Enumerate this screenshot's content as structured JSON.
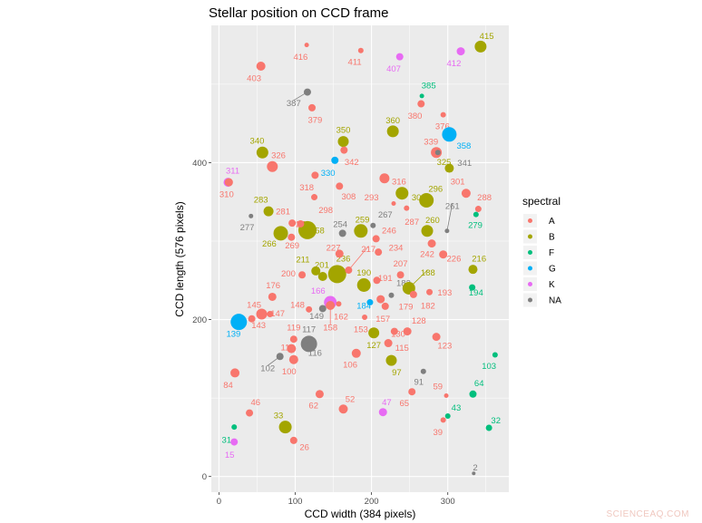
{
  "chart_data": {
    "type": "scatter",
    "title": "Stellar position on CCD frame",
    "xlabel": "CCD width (384 pixels)",
    "ylabel": "CCD length (576 pixels)",
    "xlim": [
      -10,
      380
    ],
    "ylim": [
      -20,
      575
    ],
    "x_ticks": [
      0,
      100,
      200,
      300
    ],
    "y_ticks": [
      0,
      200,
      400
    ],
    "grid": true,
    "legend": {
      "title": "spectral",
      "position": "right",
      "entries": [
        {
          "label": "A",
          "color": "#F8766D"
        },
        {
          "label": "B",
          "color": "#A3A500"
        },
        {
          "label": "F",
          "color": "#00BF7D"
        },
        {
          "label": "G",
          "color": "#00B0F6"
        },
        {
          "label": "K",
          "color": "#E76BF3"
        },
        {
          "label": "NA",
          "color": "#7F7F7F"
        }
      ]
    },
    "points": [
      {
        "id": "2",
        "x": 334,
        "y": 4,
        "s": "NA",
        "r": 2,
        "lx": 336,
        "ly": 12
      },
      {
        "id": "15",
        "x": 20,
        "y": 44,
        "s": "K",
        "r": 4,
        "lx": 14,
        "ly": 28
      },
      {
        "id": "26",
        "x": 98,
        "y": 46,
        "s": "A",
        "r": 4,
        "lx": 112,
        "ly": 38
      },
      {
        "id": "31",
        "x": 20,
        "y": 63,
        "s": "F",
        "r": 3,
        "lx": 10,
        "ly": 47
      },
      {
        "id": "32",
        "x": 354,
        "y": 62,
        "s": "F",
        "r": 3.5,
        "lx": 363,
        "ly": 72
      },
      {
        "id": "33",
        "x": 87,
        "y": 63,
        "s": "B",
        "r": 7,
        "lx": 78,
        "ly": 78
      },
      {
        "id": "39",
        "x": 294,
        "y": 72,
        "s": "A",
        "r": 3,
        "lx": 287,
        "ly": 57
      },
      {
        "id": "43",
        "x": 300,
        "y": 77,
        "s": "F",
        "r": 3,
        "lx": 311,
        "ly": 88
      },
      {
        "id": "46",
        "x": 40,
        "y": 81,
        "s": "A",
        "r": 4,
        "lx": 48,
        "ly": 95
      },
      {
        "id": "47",
        "x": 215,
        "y": 82,
        "s": "K",
        "r": 4.5,
        "lx": 220,
        "ly": 95
      },
      {
        "id": "52",
        "x": 163,
        "y": 86,
        "s": "A",
        "r": 5,
        "lx": 172,
        "ly": 99
      },
      {
        "id": "59",
        "x": 298,
        "y": 103,
        "s": "A",
        "r": 2.5,
        "lx": 287,
        "ly": 115
      },
      {
        "id": "62",
        "x": 132,
        "y": 105,
        "s": "A",
        "r": 4.5,
        "lx": 124,
        "ly": 91
      },
      {
        "id": "64",
        "x": 333,
        "y": 105,
        "s": "F",
        "r": 4,
        "lx": 341,
        "ly": 119
      },
      {
        "id": "65",
        "x": 253,
        "y": 108,
        "s": "A",
        "r": 4,
        "lx": 243,
        "ly": 94
      },
      {
        "id": "84",
        "x": 21,
        "y": 132,
        "s": "A",
        "r": 5,
        "lx": 12,
        "ly": 117
      },
      {
        "id": "91",
        "x": 268,
        "y": 134,
        "s": "NA",
        "r": 3,
        "lx": 262,
        "ly": 121
      },
      {
        "id": "97",
        "x": 226,
        "y": 148,
        "s": "B",
        "r": 6,
        "lx": 233,
        "ly": 133
      },
      {
        "id": "100",
        "x": 98,
        "y": 149,
        "s": "A",
        "r": 5,
        "lx": 92,
        "ly": 134
      },
      {
        "id": "102",
        "x": 80,
        "y": 153,
        "s": "NA",
        "r": 4,
        "lx": 64,
        "ly": 138,
        "line": true
      },
      {
        "id": "103",
        "x": 362,
        "y": 155,
        "s": "F",
        "r": 3,
        "lx": 354,
        "ly": 141
      },
      {
        "id": "106",
        "x": 180,
        "y": 157,
        "s": "A",
        "r": 5,
        "lx": 172,
        "ly": 143
      },
      {
        "id": "110",
        "x": 95,
        "y": 163,
        "s": "A",
        "r": 5,
        "lx": 90,
        "ly": 165
      },
      {
        "id": "115",
        "x": 222,
        "y": 170,
        "s": "A",
        "r": 4.5,
        "lx": 240,
        "ly": 164
      },
      {
        "id": "116",
        "x": 118,
        "y": 169,
        "s": "NA",
        "r": 9,
        "lx": 126,
        "ly": 158
      },
      {
        "id": "117",
        "x": 118,
        "y": 169,
        "s": "NA",
        "r": 2,
        "lx": 118,
        "ly": 188
      },
      {
        "id": "119",
        "x": 98,
        "y": 175,
        "s": "A",
        "r": 4,
        "lx": 98,
        "ly": 190
      },
      {
        "id": "123",
        "x": 285,
        "y": 178,
        "s": "A",
        "r": 4.5,
        "lx": 296,
        "ly": 167
      },
      {
        "id": "127",
        "x": 203,
        "y": 183,
        "s": "B",
        "r": 6,
        "lx": 203,
        "ly": 168
      },
      {
        "id": "128",
        "x": 247,
        "y": 185,
        "s": "A",
        "r": 4.5,
        "lx": 262,
        "ly": 199
      },
      {
        "id": "130",
        "x": 230,
        "y": 185,
        "s": "A",
        "r": 4,
        "lx": 235,
        "ly": 182
      },
      {
        "id": "139",
        "x": 26,
        "y": 197,
        "s": "G",
        "r": 9,
        "lx": 19,
        "ly": 182
      },
      {
        "id": "143",
        "x": 43,
        "y": 201,
        "s": "A",
        "r": 4,
        "lx": 52,
        "ly": 193
      },
      {
        "id": "145",
        "x": 56,
        "y": 207,
        "s": "A",
        "r": 6,
        "lx": 46,
        "ly": 219
      },
      {
        "id": "147",
        "x": 67,
        "y": 207,
        "s": "A",
        "r": 3.5,
        "lx": 77,
        "ly": 208
      },
      {
        "id": "148",
        "x": 118,
        "y": 213,
        "s": "A",
        "r": 3.5,
        "lx": 103,
        "ly": 219
      },
      {
        "id": "149",
        "x": 136,
        "y": 214,
        "s": "NA",
        "r": 4,
        "lx": 128,
        "ly": 205
      },
      {
        "id": "153",
        "x": 191,
        "y": 203,
        "s": "A",
        "r": 3,
        "lx": 186,
        "ly": 188
      },
      {
        "id": "157",
        "x": 218,
        "y": 217,
        "s": "A",
        "r": 4,
        "lx": 215,
        "ly": 201
      },
      {
        "id": "158",
        "x": 146,
        "y": 218,
        "s": "A",
        "r": 5,
        "lx": 146,
        "ly": 190,
        "line": true
      },
      {
        "id": "162",
        "x": 157,
        "y": 220,
        "s": "A",
        "r": 3,
        "lx": 160,
        "ly": 204
      },
      {
        "id": "166",
        "x": 146,
        "y": 222,
        "s": "K",
        "r": 7,
        "lx": 130,
        "ly": 237
      },
      {
        "id": "176",
        "x": 70,
        "y": 229,
        "s": "A",
        "r": 4.5,
        "lx": 71,
        "ly": 244
      },
      {
        "id": "179",
        "x": 212,
        "y": 226,
        "s": "A",
        "r": 4.5,
        "lx": 245,
        "ly": 217
      },
      {
        "id": "182",
        "x": 255,
        "y": 232,
        "s": "A",
        "r": 4,
        "lx": 274,
        "ly": 218
      },
      {
        "id": "183",
        "x": 226,
        "y": 231,
        "s": "NA",
        "r": 3,
        "lx": 242,
        "ly": 247
      },
      {
        "id": "184",
        "x": 198,
        "y": 222,
        "s": "G",
        "r": 3.5,
        "lx": 190,
        "ly": 218
      },
      {
        "id": "188",
        "x": 249,
        "y": 240,
        "s": "B",
        "r": 7,
        "lx": 274,
        "ly": 260,
        "line": true
      },
      {
        "id": "190",
        "x": 190,
        "y": 244,
        "s": "B",
        "r": 7.5,
        "lx": 190,
        "ly": 260
      },
      {
        "id": "191",
        "x": 207,
        "y": 250,
        "s": "A",
        "r": 4,
        "lx": 218,
        "ly": 253
      },
      {
        "id": "193",
        "x": 276,
        "y": 235,
        "s": "A",
        "r": 3.5,
        "lx": 296,
        "ly": 235
      },
      {
        "id": "194",
        "x": 332,
        "y": 241,
        "s": "F",
        "r": 3.5,
        "lx": 337,
        "ly": 235
      },
      {
        "id": "200",
        "x": 109,
        "y": 257,
        "s": "A",
        "r": 4,
        "lx": 91,
        "ly": 259
      },
      {
        "id": "201",
        "x": 136,
        "y": 255,
        "s": "B",
        "r": 5,
        "lx": 135,
        "ly": 270
      },
      {
        "id": "207",
        "x": 238,
        "y": 257,
        "s": "A",
        "r": 4,
        "lx": 238,
        "ly": 272
      },
      {
        "id": "211",
        "x": 127,
        "y": 262,
        "s": "B",
        "r": 5,
        "lx": 110,
        "ly": 277
      },
      {
        "id": "216",
        "x": 333,
        "y": 264,
        "s": "B",
        "r": 5,
        "lx": 341,
        "ly": 278
      },
      {
        "id": "217",
        "x": 170,
        "y": 263,
        "s": "A",
        "r": 4,
        "lx": 196,
        "ly": 290,
        "line": true
      },
      {
        "id": "226",
        "x": 294,
        "y": 283,
        "s": "A",
        "r": 4.5,
        "lx": 308,
        "ly": 278
      },
      {
        "id": "227",
        "x": 158,
        "y": 284,
        "s": "A",
        "r": 4.5,
        "lx": 150,
        "ly": 292
      },
      {
        "id": "234",
        "x": 209,
        "y": 286,
        "s": "A",
        "r": 4,
        "lx": 232,
        "ly": 292
      },
      {
        "id": "236",
        "x": 155,
        "y": 258,
        "s": "B",
        "r": 10,
        "lx": 163,
        "ly": 278
      },
      {
        "id": "242",
        "x": 279,
        "y": 297,
        "s": "A",
        "r": 4.5,
        "lx": 273,
        "ly": 284
      },
      {
        "id": "246",
        "x": 206,
        "y": 303,
        "s": "A",
        "r": 4,
        "lx": 223,
        "ly": 314
      },
      {
        "id": "254",
        "x": 162,
        "y": 310,
        "s": "NA",
        "r": 4,
        "lx": 159,
        "ly": 322
      },
      {
        "id": "258",
        "x": 116,
        "y": 314,
        "s": "B",
        "r": 10,
        "lx": 129,
        "ly": 314
      },
      {
        "id": "259",
        "x": 186,
        "y": 313,
        "s": "B",
        "r": 7.5,
        "lx": 188,
        "ly": 328
      },
      {
        "id": "260",
        "x": 273,
        "y": 313,
        "s": "B",
        "r": 6.5,
        "lx": 280,
        "ly": 327
      },
      {
        "id": "261",
        "x": 299,
        "y": 313,
        "s": "NA",
        "r": 2.5,
        "lx": 306,
        "ly": 345,
        "line": true
      },
      {
        "id": "266",
        "x": 81,
        "y": 310,
        "s": "B",
        "r": 8,
        "lx": 66,
        "ly": 297
      },
      {
        "id": "267",
        "x": 202,
        "y": 320,
        "s": "NA",
        "r": 3,
        "lx": 218,
        "ly": 334
      },
      {
        "id": "269",
        "x": 95,
        "y": 305,
        "s": "A",
        "r": 4,
        "lx": 96,
        "ly": 295
      },
      {
        "id": "271",
        "x": 107,
        "y": 322,
        "s": "A",
        "r": 4,
        "lx": 110,
        "ly": 322
      },
      {
        "id": "277",
        "x": 42,
        "y": 332,
        "s": "NA",
        "r": 2.5,
        "lx": 37,
        "ly": 318
      },
      {
        "id": "279",
        "x": 337,
        "y": 334,
        "s": "F",
        "r": 3,
        "lx": 336,
        "ly": 321
      },
      {
        "id": "281",
        "x": 96,
        "y": 323,
        "s": "A",
        "r": 4,
        "lx": 84,
        "ly": 338
      },
      {
        "id": "283",
        "x": 65,
        "y": 338,
        "s": "B",
        "r": 5.5,
        "lx": 55,
        "ly": 353
      },
      {
        "id": "287",
        "x": 246,
        "y": 342,
        "s": "A",
        "r": 3,
        "lx": 253,
        "ly": 325
      },
      {
        "id": "288",
        "x": 340,
        "y": 341,
        "s": "A",
        "r": 3.5,
        "lx": 348,
        "ly": 356
      },
      {
        "id": "293",
        "x": 229,
        "y": 348,
        "s": "A",
        "r": 2.5,
        "lx": 200,
        "ly": 356
      },
      {
        "id": "296",
        "x": 272,
        "y": 352,
        "s": "B",
        "r": 8,
        "lx": 284,
        "ly": 367
      },
      {
        "id": "298",
        "x": 125,
        "y": 356,
        "s": "A",
        "r": 3.5,
        "lx": 140,
        "ly": 340
      },
      {
        "id": "301",
        "x": 324,
        "y": 361,
        "s": "A",
        "r": 5,
        "lx": 313,
        "ly": 376
      },
      {
        "id": "302",
        "x": 240,
        "y": 361,
        "s": "B",
        "r": 7,
        "lx": 262,
        "ly": 356
      },
      {
        "id": "308",
        "x": 158,
        "y": 370,
        "s": "A",
        "r": 4,
        "lx": 170,
        "ly": 357
      },
      {
        "id": "310",
        "x": 13,
        "y": 375,
        "s": "A",
        "r": 4.5,
        "lx": 10,
        "ly": 360
      },
      {
        "id": "311",
        "x": 12,
        "y": 375,
        "s": "K",
        "r": 5,
        "lx": 18,
        "ly": 390
      },
      {
        "id": "316",
        "x": 217,
        "y": 380,
        "s": "A",
        "r": 5.5,
        "lx": 236,
        "ly": 376
      },
      {
        "id": "318",
        "x": 126,
        "y": 384,
        "s": "A",
        "r": 4,
        "lx": 115,
        "ly": 369
      },
      {
        "id": "325",
        "x": 302,
        "y": 393,
        "s": "B",
        "r": 5,
        "lx": 295,
        "ly": 401
      },
      {
        "id": "326",
        "x": 70,
        "y": 395,
        "s": "A",
        "r": 6,
        "lx": 78,
        "ly": 410
      },
      {
        "id": "330",
        "x": 152,
        "y": 403,
        "s": "G",
        "r": 4,
        "lx": 143,
        "ly": 387
      },
      {
        "id": "339",
        "x": 285,
        "y": 413,
        "s": "A",
        "r": 6,
        "lx": 278,
        "ly": 427
      },
      {
        "id": "340",
        "x": 57,
        "y": 413,
        "s": "B",
        "r": 6.5,
        "lx": 50,
        "ly": 428
      },
      {
        "id": "341",
        "x": 287,
        "y": 413,
        "s": "NA",
        "r": 3,
        "lx": 322,
        "ly": 400
      },
      {
        "id": "342",
        "x": 164,
        "y": 416,
        "s": "A",
        "r": 4,
        "lx": 174,
        "ly": 401
      },
      {
        "id": "350",
        "x": 163,
        "y": 427,
        "s": "B",
        "r": 6,
        "lx": 163,
        "ly": 442
      },
      {
        "id": "358",
        "x": 302,
        "y": 436,
        "s": "G",
        "r": 8,
        "lx": 321,
        "ly": 422
      },
      {
        "id": "360",
        "x": 228,
        "y": 440,
        "s": "B",
        "r": 6.5,
        "lx": 228,
        "ly": 454
      },
      {
        "id": "376",
        "x": 294,
        "y": 461,
        "s": "A",
        "r": 3,
        "lx": 293,
        "ly": 447
      },
      {
        "id": "379",
        "x": 122,
        "y": 470,
        "s": "A",
        "r": 4,
        "lx": 126,
        "ly": 455
      },
      {
        "id": "380",
        "x": 265,
        "y": 475,
        "s": "A",
        "r": 4,
        "lx": 257,
        "ly": 460
      },
      {
        "id": "385",
        "x": 266,
        "y": 485,
        "s": "F",
        "r": 2.5,
        "lx": 275,
        "ly": 499
      },
      {
        "id": "387",
        "x": 116,
        "y": 490,
        "s": "NA",
        "r": 4,
        "lx": 98,
        "ly": 476,
        "line": true
      },
      {
        "id": "403",
        "x": 55,
        "y": 523,
        "s": "A",
        "r": 5,
        "lx": 46,
        "ly": 508
      },
      {
        "id": "407",
        "x": 237,
        "y": 535,
        "s": "K",
        "r": 4,
        "lx": 229,
        "ly": 520
      },
      {
        "id": "411",
        "x": 186,
        "y": 543,
        "s": "A",
        "r": 3,
        "lx": 178,
        "ly": 529
      },
      {
        "id": "412",
        "x": 317,
        "y": 542,
        "s": "K",
        "r": 4.5,
        "lx": 308,
        "ly": 527
      },
      {
        "id": "415",
        "x": 343,
        "y": 548,
        "s": "B",
        "r": 6.5,
        "lx": 351,
        "ly": 562
      },
      {
        "id": "416",
        "x": 115,
        "y": 550,
        "s": "A",
        "r": 2.5,
        "lx": 107,
        "ly": 535
      }
    ]
  },
  "watermark": "SCIENCEAQ.COM"
}
